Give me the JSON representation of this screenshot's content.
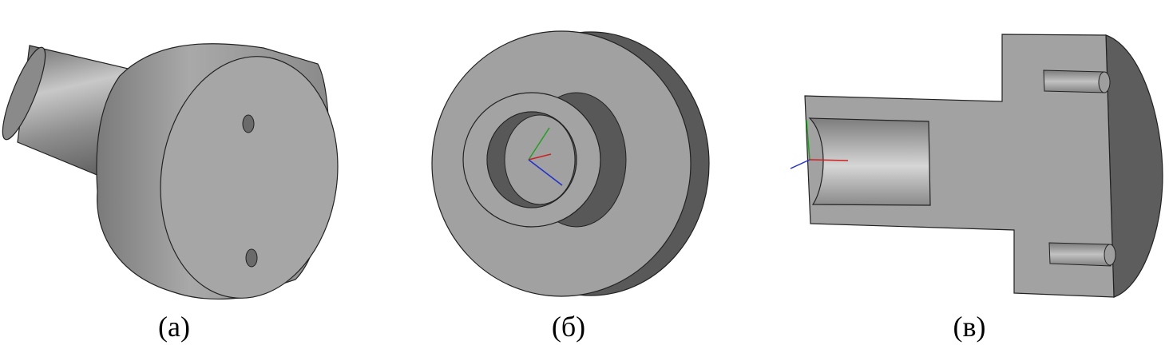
{
  "panels": [
    {
      "id": "a",
      "caption": "(а)"
    },
    {
      "id": "b",
      "caption": "(б)"
    },
    {
      "id": "c",
      "caption": "(в)"
    }
  ],
  "colors": {
    "face_light": "#a7a7a7",
    "face_mid": "#9a9a9a",
    "face_dark": "#5b5b5b",
    "edge": "#1a1a1a",
    "axis_x": "#d02020",
    "axis_y": "#20a020",
    "axis_z": "#2030d0"
  }
}
